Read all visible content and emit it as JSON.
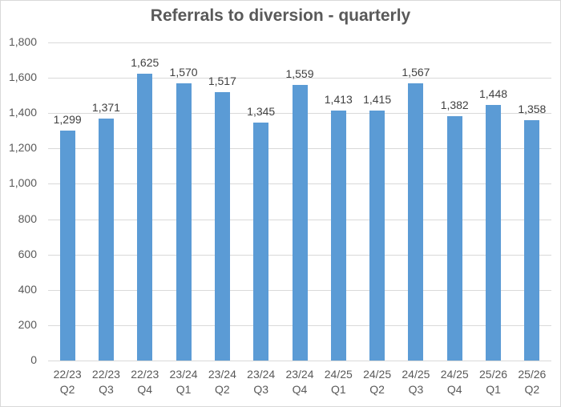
{
  "chart_data": {
    "type": "bar",
    "title": "Referrals to diversion - quarterly",
    "xlabel": "",
    "ylabel": "",
    "ylim": [
      0,
      1800
    ],
    "yticks": [
      "0",
      "200",
      "400",
      "600",
      "800",
      "1,000",
      "1,200",
      "1,400",
      "1,600",
      "1,800"
    ],
    "grid": true,
    "legend": null,
    "categories": [
      "22/23 Q2",
      "22/23 Q3",
      "22/23 Q4",
      "23/24 Q1",
      "23/24 Q2",
      "23/24 Q3",
      "23/24 Q4",
      "24/25 Q1",
      "24/25 Q2",
      "24/25 Q3",
      "24/25 Q4",
      "25/26 Q1",
      "25/26 Q2"
    ],
    "category_lines": [
      [
        "22/23",
        "Q2"
      ],
      [
        "22/23",
        "Q3"
      ],
      [
        "22/23",
        "Q4"
      ],
      [
        "23/24",
        "Q1"
      ],
      [
        "23/24",
        "Q2"
      ],
      [
        "23/24",
        "Q3"
      ],
      [
        "23/24",
        "Q4"
      ],
      [
        "24/25",
        "Q1"
      ],
      [
        "24/25",
        "Q2"
      ],
      [
        "24/25",
        "Q3"
      ],
      [
        "24/25",
        "Q4"
      ],
      [
        "25/26",
        "Q1"
      ],
      [
        "25/26",
        "Q2"
      ]
    ],
    "values": [
      1299,
      1371,
      1625,
      1570,
      1517,
      1345,
      1559,
      1413,
      1415,
      1567,
      1382,
      1448,
      1358
    ],
    "value_labels": [
      "1,299",
      "1,371",
      "1,625",
      "1,570",
      "1,517",
      "1,345",
      "1,559",
      "1,413",
      "1,415",
      "1,567",
      "1,382",
      "1,448",
      "1,358"
    ],
    "bar_color": "#5b9bd5"
  }
}
